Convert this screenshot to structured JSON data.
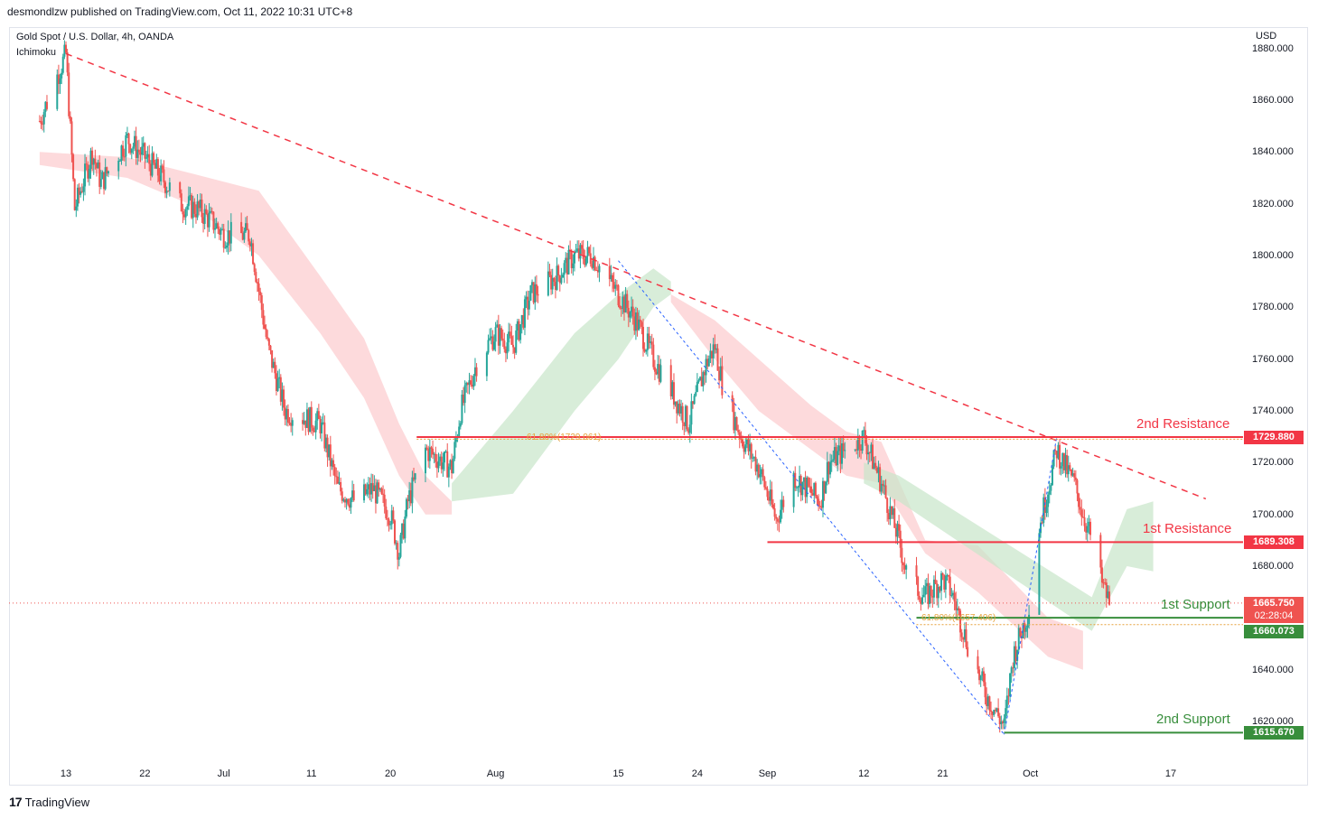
{
  "header": {
    "published_text": "desmondlzw published on TradingView.com, Oct 11, 2022 10:31 UTC+8",
    "symbol_legend": "Gold Spot / U.S. Dollar, 4h, OANDA",
    "indicator_legend": "Ichimoku"
  },
  "axis": {
    "currency": "USD",
    "y_ticks": [
      "1880.000",
      "1860.000",
      "1840.000",
      "1820.000",
      "1800.000",
      "1780.000",
      "1760.000",
      "1740.000",
      "1720.000",
      "1700.000",
      "1680.000",
      "1640.000",
      "1620.000"
    ],
    "x_ticks": [
      "13",
      "22",
      "Jul",
      "11",
      "20",
      "Aug",
      "15",
      "24",
      "Sep",
      "12",
      "21",
      "Oct",
      "17"
    ]
  },
  "levels": {
    "resistance2": {
      "label": "2nd Resistance",
      "value": "1729.880"
    },
    "resistance1": {
      "label": "1st Resistance",
      "value": "1689.308"
    },
    "support1": {
      "label": "1st Support",
      "value": "1660.073"
    },
    "support2": {
      "label": "2nd Support",
      "value": "1615.670"
    },
    "current_price": "1665.750",
    "countdown": "02:28:04"
  },
  "fib_labels": {
    "fib1": "61.80%(1729.061)",
    "fib2": "61.80%(1657.406)"
  },
  "colors": {
    "resistance": "#f23645",
    "support": "#388e3c",
    "bull": "#26a69a",
    "bear": "#ef5350",
    "trend": "#f23645",
    "fib_line": "#2962ff",
    "cloud_bear": "#fccbcd",
    "cloud_bull": "#c8e6c9"
  },
  "footer": {
    "brand": "TradingView",
    "logo_mark": "17"
  },
  "chart_data": {
    "type": "candlestick",
    "title": "Gold Spot / U.S. Dollar, 4h, OANDA",
    "ylabel": "USD",
    "ylim": [
      1608,
      1882
    ],
    "x_range": [
      "2022-06-10",
      "2022-10-23"
    ],
    "x_labels": [
      "13",
      "22",
      "Jul",
      "11",
      "20",
      "Aug",
      "15",
      "24",
      "Sep",
      "12",
      "21",
      "Oct",
      "17"
    ],
    "close_path": [
      [
        "2022-06-10",
        1852
      ],
      [
        "2022-06-13",
        1878
      ],
      [
        "2022-06-14",
        1818
      ],
      [
        "2022-06-16",
        1840
      ],
      [
        "2022-06-17",
        1828
      ],
      [
        "2022-06-20",
        1845
      ],
      [
        "2022-06-22",
        1838
      ],
      [
        "2022-06-24",
        1830
      ],
      [
        "2022-06-26",
        1820
      ],
      [
        "2022-06-28",
        1818
      ],
      [
        "2022-06-30",
        1812
      ],
      [
        "2022-07-01",
        1808
      ],
      [
        "2022-07-04",
        1808
      ],
      [
        "2022-07-06",
        1765
      ],
      [
        "2022-07-08",
        1740
      ],
      [
        "2022-07-12",
        1735
      ],
      [
        "2022-07-14",
        1710
      ],
      [
        "2022-07-16",
        1705
      ],
      [
        "2022-07-18",
        1710
      ],
      [
        "2022-07-20",
        1700
      ],
      [
        "2022-07-21",
        1685
      ],
      [
        "2022-07-22",
        1705
      ],
      [
        "2022-07-24",
        1725
      ],
      [
        "2022-07-27",
        1718
      ],
      [
        "2022-07-28",
        1740
      ],
      [
        "2022-07-30",
        1760
      ],
      [
        "2022-08-01",
        1770
      ],
      [
        "2022-08-03",
        1765
      ],
      [
        "2022-08-05",
        1785
      ],
      [
        "2022-08-08",
        1792
      ],
      [
        "2022-08-10",
        1800
      ],
      [
        "2022-08-12",
        1800
      ],
      [
        "2022-08-15",
        1785
      ],
      [
        "2022-08-17",
        1775
      ],
      [
        "2022-08-19",
        1760
      ],
      [
        "2022-08-21",
        1748
      ],
      [
        "2022-08-23",
        1735
      ],
      [
        "2022-08-25",
        1758
      ],
      [
        "2022-08-26",
        1765
      ],
      [
        "2022-08-27",
        1748
      ],
      [
        "2022-08-29",
        1730
      ],
      [
        "2022-08-31",
        1718
      ],
      [
        "2022-09-02",
        1698
      ],
      [
        "2022-09-04",
        1715
      ],
      [
        "2022-09-07",
        1705
      ],
      [
        "2022-09-08",
        1720
      ],
      [
        "2022-09-10",
        1725
      ],
      [
        "2022-09-12",
        1730
      ],
      [
        "2022-09-14",
        1712
      ],
      [
        "2022-09-16",
        1690
      ],
      [
        "2022-09-17",
        1675
      ],
      [
        "2022-09-19",
        1668
      ],
      [
        "2022-09-21",
        1675
      ],
      [
        "2022-09-22",
        1670
      ],
      [
        "2022-09-24",
        1648
      ],
      [
        "2022-09-26",
        1630
      ],
      [
        "2022-09-28",
        1618
      ],
      [
        "2022-09-29",
        1645
      ],
      [
        "2022-10-01",
        1665
      ],
      [
        "2022-10-02",
        1695
      ],
      [
        "2022-10-04",
        1725
      ],
      [
        "2022-10-05",
        1718
      ],
      [
        "2022-10-06",
        1712
      ],
      [
        "2022-10-07",
        1700
      ],
      [
        "2022-10-08",
        1690
      ],
      [
        "2022-10-09",
        1675
      ],
      [
        "2022-10-10",
        1665.75
      ]
    ],
    "horizontal_levels": [
      {
        "name": "2nd Resistance",
        "price": 1729.88,
        "from": "2022-07-23"
      },
      {
        "name": "1st Resistance",
        "price": 1689.308,
        "from": "2022-09-01"
      },
      {
        "name": "1st Support",
        "price": 1660.073,
        "from": "2022-09-18"
      },
      {
        "name": "2nd Support",
        "price": 1615.67,
        "from": "2022-09-28"
      },
      {
        "name": "Current price",
        "price": 1665.75,
        "from": "2022-06-10",
        "style": "dotted"
      }
    ],
    "trendline": {
      "points": [
        [
          "2022-06-13",
          1878
        ],
        [
          "2022-10-21",
          1706
        ]
      ],
      "style": "dashed"
    },
    "fib_lines": [
      {
        "points": [
          [
            "2022-08-15",
            1798
          ],
          [
            "2022-09-28",
            1615
          ]
        ],
        "style": "dashed"
      },
      {
        "points": [
          [
            "2022-09-28",
            1615
          ],
          [
            "2022-10-04",
            1730
          ]
        ],
        "style": "dashed"
      }
    ],
    "ichimoku_cloud": [
      {
        "color": "bear",
        "upper": [
          [
            "2022-06-10",
            1840
          ],
          [
            "2022-06-20",
            1838
          ],
          [
            "2022-06-27",
            1832
          ],
          [
            "2022-07-05",
            1825
          ],
          [
            "2022-07-12",
            1792
          ],
          [
            "2022-07-17",
            1768
          ],
          [
            "2022-07-21",
            1735
          ],
          [
            "2022-07-24",
            1715
          ],
          [
            "2022-07-27",
            1705
          ]
        ],
        "lower": [
          [
            "2022-06-10",
            1835
          ],
          [
            "2022-06-20",
            1830
          ],
          [
            "2022-06-27",
            1820
          ],
          [
            "2022-07-05",
            1800
          ],
          [
            "2022-07-12",
            1770
          ],
          [
            "2022-07-17",
            1745
          ],
          [
            "2022-07-21",
            1715
          ],
          [
            "2022-07-24",
            1700
          ],
          [
            "2022-07-27",
            1700
          ]
        ]
      },
      {
        "color": "bull",
        "upper": [
          [
            "2022-07-27",
            1712
          ],
          [
            "2022-08-03",
            1740
          ],
          [
            "2022-08-10",
            1770
          ],
          [
            "2022-08-15",
            1785
          ],
          [
            "2022-08-19",
            1795
          ],
          [
            "2022-08-21",
            1790
          ]
        ],
        "lower": [
          [
            "2022-07-27",
            1705
          ],
          [
            "2022-08-03",
            1708
          ],
          [
            "2022-08-10",
            1740
          ],
          [
            "2022-08-15",
            1760
          ],
          [
            "2022-08-19",
            1780
          ],
          [
            "2022-08-21",
            1785
          ]
        ]
      },
      {
        "color": "bear",
        "upper": [
          [
            "2022-08-21",
            1785
          ],
          [
            "2022-08-26",
            1775
          ],
          [
            "2022-08-31",
            1760
          ],
          [
            "2022-09-06",
            1742
          ],
          [
            "2022-09-10",
            1732
          ],
          [
            "2022-09-14",
            1728
          ],
          [
            "2022-09-19",
            1690
          ],
          [
            "2022-09-25",
            1688
          ],
          [
            "2022-10-03",
            1660
          ],
          [
            "2022-10-07",
            1655
          ]
        ],
        "lower": [
          [
            "2022-08-21",
            1782
          ],
          [
            "2022-08-26",
            1760
          ],
          [
            "2022-08-31",
            1740
          ],
          [
            "2022-09-06",
            1725
          ],
          [
            "2022-09-10",
            1715
          ],
          [
            "2022-09-14",
            1712
          ],
          [
            "2022-09-19",
            1685
          ],
          [
            "2022-09-25",
            1670
          ],
          [
            "2022-10-03",
            1645
          ],
          [
            "2022-10-07",
            1640
          ]
        ]
      },
      {
        "color": "bull",
        "upper": [
          [
            "2022-09-12",
            1720
          ],
          [
            "2022-09-16",
            1715
          ],
          [
            "2022-10-08",
            1668
          ],
          [
            "2022-10-12",
            1702
          ],
          [
            "2022-10-15",
            1705
          ]
        ],
        "lower": [
          [
            "2022-09-12",
            1712
          ],
          [
            "2022-09-16",
            1705
          ],
          [
            "2022-10-08",
            1655
          ],
          [
            "2022-10-12",
            1680
          ],
          [
            "2022-10-15",
            1678
          ]
        ]
      }
    ]
  }
}
